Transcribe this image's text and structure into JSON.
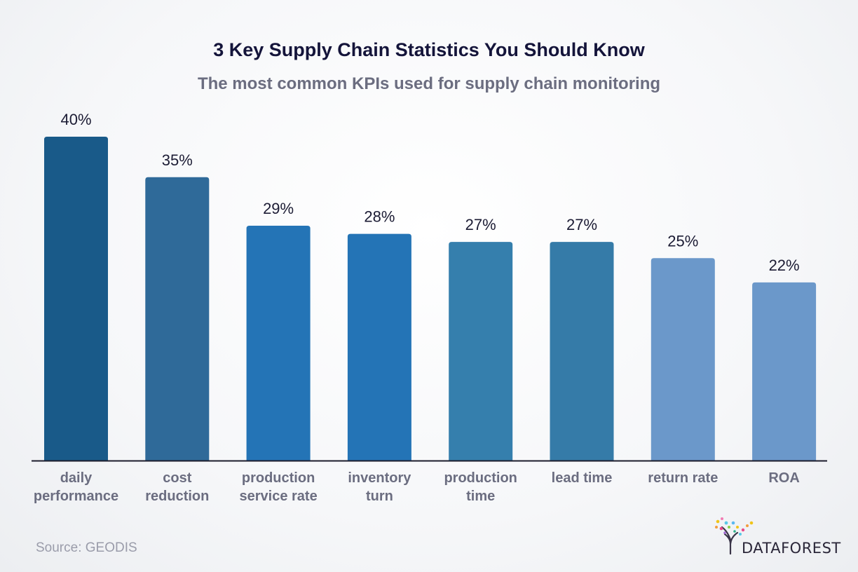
{
  "title": "3 Key Supply Chain Statistics You Should Know",
  "subtitle": "The most common KPIs used for supply chain monitoring",
  "source": "Source: GEODIS",
  "logo_text": "DATAFOREST",
  "chart_data": {
    "type": "bar",
    "title": "3 Key Supply Chain Statistics You Should Know",
    "subtitle": "The most common KPIs used for supply chain monitoring",
    "categories": [
      [
        "daily",
        "performance"
      ],
      [
        "cost",
        "reduction"
      ],
      [
        "production",
        "service rate"
      ],
      [
        "inventory",
        "turn"
      ],
      [
        "production",
        "time"
      ],
      [
        "lead time"
      ],
      [
        "return rate"
      ],
      [
        "ROA"
      ]
    ],
    "values": [
      40,
      35,
      29,
      28,
      27,
      27,
      25,
      22
    ],
    "value_labels": [
      "40%",
      "35%",
      "29%",
      "28%",
      "27%",
      "27%",
      "25%",
      "22%"
    ],
    "colors": [
      "#195a89",
      "#2f6a99",
      "#2474b6",
      "#2474b6",
      "#357fad",
      "#357ba8",
      "#6b98ca",
      "#6b98ca"
    ],
    "unit": "%",
    "ylim": [
      0,
      40
    ],
    "grid": false,
    "legend": "none"
  }
}
